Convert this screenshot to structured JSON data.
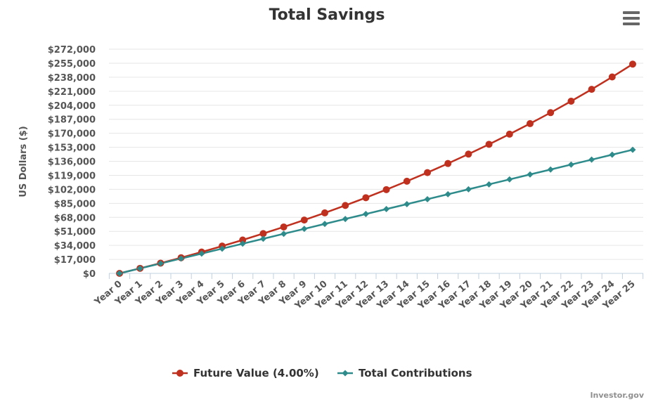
{
  "chart_data": {
    "type": "line",
    "title": "Total Savings",
    "ylabel": "US Dollars ($)",
    "xlabel": "",
    "categories": [
      "Year 0",
      "Year 1",
      "Year 2",
      "Year 3",
      "Year 4",
      "Year 5",
      "Year 6",
      "Year 7",
      "Year 8",
      "Year 9",
      "Year 10",
      "Year 11",
      "Year 12",
      "Year 13",
      "Year 14",
      "Year 15",
      "Year 16",
      "Year 17",
      "Year 18",
      "Year 19",
      "Year 20",
      "Year 21",
      "Year 22",
      "Year 23",
      "Year 24",
      "Year 25"
    ],
    "ylim": [
      0,
      272000
    ],
    "y_tick_step": 17000,
    "y_ticks": [
      "$0",
      "$17,000",
      "$34,000",
      "$51,000",
      "$68,000",
      "$85,000",
      "$102,000",
      "$119,000",
      "$136,000",
      "$153,000",
      "$170,000",
      "$187,000",
      "$204,000",
      "$221,000",
      "$238,000",
      "$255,000",
      "$272,000"
    ],
    "grid": true,
    "legend_position": "bottom-center",
    "series": [
      {
        "name": "Future Value (4.00%)",
        "color": "#c0301e",
        "marker": "circle",
        "values": [
          0,
          6100,
          12400,
          19000,
          25900,
          33100,
          40500,
          48300,
          56300,
          64700,
          73400,
          82400,
          91800,
          101600,
          111800,
          122300,
          133300,
          144700,
          156600,
          168900,
          181700,
          195000,
          208900,
          223300,
          238300,
          253900
        ]
      },
      {
        "name": "Total Contributions",
        "color": "#2e8b8b",
        "marker": "diamond",
        "values": [
          0,
          6000,
          12000,
          18000,
          24000,
          30000,
          36000,
          42000,
          48000,
          54000,
          60000,
          66000,
          72000,
          78000,
          84000,
          90000,
          96000,
          102000,
          108000,
          114000,
          120000,
          126000,
          132000,
          138000,
          144000,
          150000
        ]
      }
    ]
  },
  "credits": "Investor.gov",
  "menu_icon": "hamburger-menu-icon"
}
